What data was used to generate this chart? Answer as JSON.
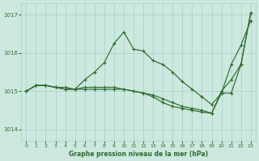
{
  "background_color": "#cce8df",
  "grid_color": "#aacfc5",
  "line_color": "#2d6b2d",
  "xlabel": "Graphe pression niveau de la mer (hPa)",
  "xlim": [
    -0.5,
    23.5
  ],
  "ylim": [
    1013.7,
    1017.3
  ],
  "yticks": [
    1014,
    1015,
    1016,
    1017
  ],
  "xticks": [
    0,
    1,
    2,
    3,
    4,
    5,
    6,
    7,
    8,
    9,
    10,
    11,
    12,
    13,
    14,
    15,
    16,
    17,
    18,
    19,
    20,
    21,
    22,
    23
  ],
  "series": [
    [
      1015.0,
      1015.15,
      1015.15,
      1015.1,
      1015.1,
      1015.05,
      1015.3,
      1015.5,
      1015.75,
      1016.25,
      1016.55,
      1016.1,
      1016.05,
      1015.8,
      1015.7,
      1015.5,
      1015.25,
      1015.05,
      1014.85,
      1014.65,
      1014.95,
      1015.7,
      1016.2,
      1016.85
    ],
    [
      1015.0,
      1015.15,
      1015.15,
      1015.1,
      1015.05,
      1015.05,
      1015.1,
      1015.1,
      1015.1,
      1015.1,
      1015.05,
      1015.0,
      1014.95,
      1014.85,
      1014.7,
      1014.6,
      1014.55,
      1014.5,
      1014.45,
      1014.42,
      1014.95,
      1014.95,
      1015.7,
      1017.05
    ],
    [
      1015.0,
      1015.15,
      1015.15,
      1015.1,
      1015.05,
      1015.05,
      1015.05,
      1015.05,
      1015.05,
      1015.05,
      1015.05,
      1015.0,
      1014.95,
      1014.9,
      1014.8,
      1014.7,
      1014.6,
      1014.55,
      1014.5,
      1014.42,
      1015.0,
      1015.3,
      1015.7,
      1017.05
    ]
  ]
}
